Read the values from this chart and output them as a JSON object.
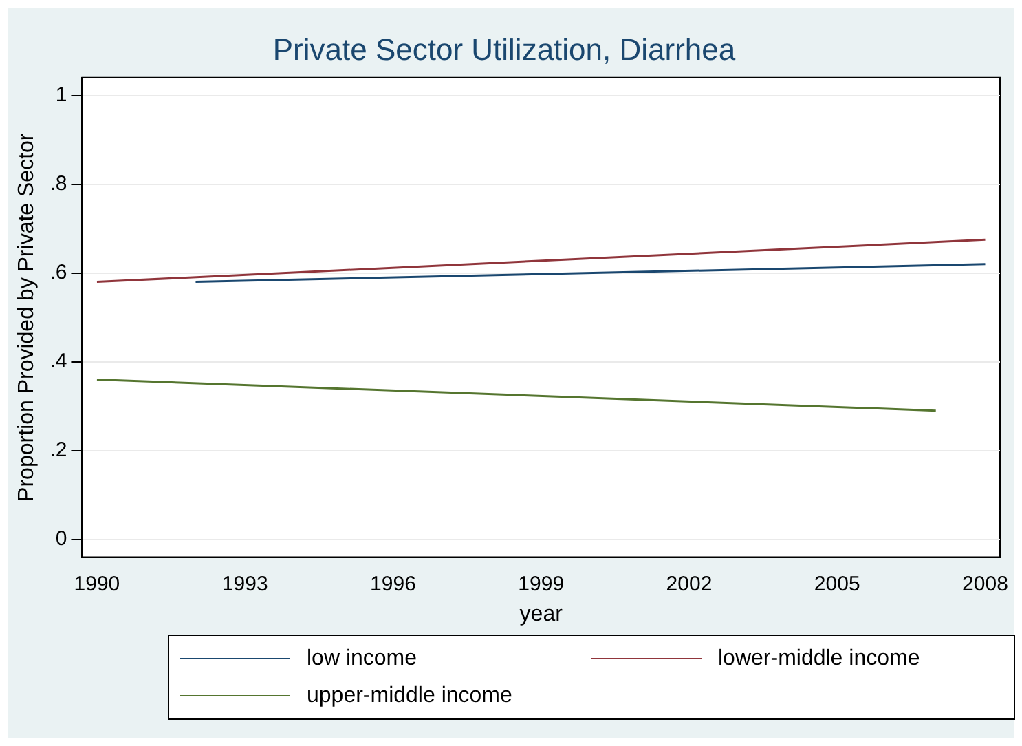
{
  "chart_data": {
    "type": "line",
    "title": "Private Sector Utilization, Diarrhea",
    "xlabel": "year",
    "ylabel": "Proportion Provided by Private Sector",
    "series": [
      {
        "name": "low income",
        "color": "#1a476f",
        "x": [
          1992,
          2008
        ],
        "values": [
          0.58,
          0.62
        ]
      },
      {
        "name": "lower-middle income",
        "color": "#90353b",
        "x": [
          1990,
          2008
        ],
        "values": [
          0.58,
          0.675
        ]
      },
      {
        "name": "upper-middle income",
        "color": "#55752f",
        "x": [
          1990,
          2007
        ],
        "values": [
          0.36,
          0.29
        ]
      }
    ],
    "xlim": [
      1989.7,
      2008.3
    ],
    "xticks": [
      1990,
      1993,
      1996,
      1999,
      2002,
      2005,
      2008
    ],
    "ylim": [
      -0.04,
      1.04
    ],
    "yticks": [
      {
        "value": 0,
        "label": "0"
      },
      {
        "value": 0.2,
        "label": ".2"
      },
      {
        "value": 0.4,
        "label": ".4"
      },
      {
        "value": 0.6,
        "label": ".6"
      },
      {
        "value": 0.8,
        "label": ".8"
      },
      {
        "value": 1,
        "label": "1"
      }
    ],
    "grid": "y",
    "legend": "bottom",
    "marker": "none",
    "line_style": "solid"
  }
}
